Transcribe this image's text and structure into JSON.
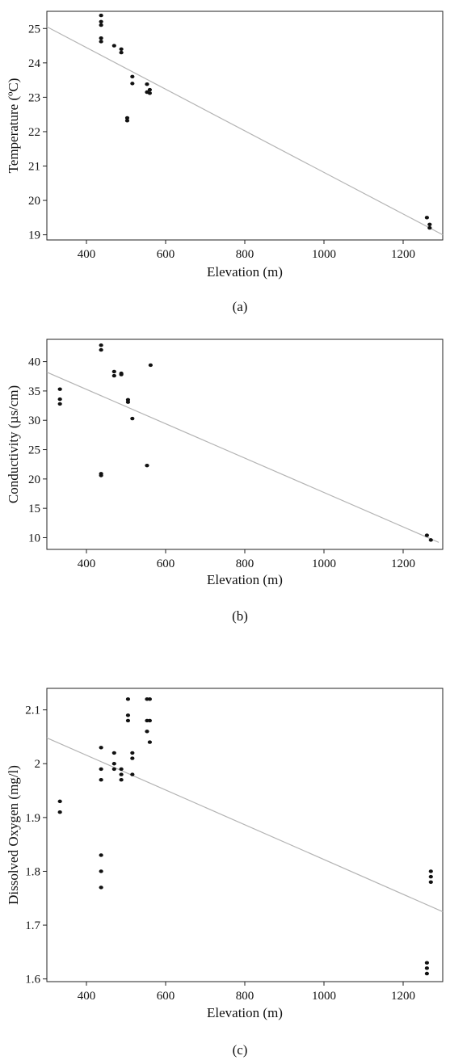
{
  "chart_data": [
    {
      "type": "scatter",
      "caption": "(a)",
      "xlabel": "Elevation (m)",
      "ylabel": "Temperature (ºC)",
      "xlim": [
        300,
        1300
      ],
      "ylim": [
        18.85,
        25.5
      ],
      "xticks": [
        400,
        600,
        800,
        1000,
        1200
      ],
      "yticks": [
        19,
        20,
        21,
        22,
        23,
        24,
        25
      ],
      "grid": false,
      "series": [
        {
          "points": [
            [
              437,
              25.38
            ],
            [
              437,
              25.2
            ],
            [
              437,
              25.1
            ],
            [
              437,
              24.72
            ],
            [
              437,
              24.62
            ],
            [
              470,
              24.5
            ],
            [
              488,
              24.4
            ],
            [
              488,
              24.3
            ],
            [
              503,
              22.4
            ],
            [
              503,
              22.32
            ],
            [
              516,
              23.6
            ],
            [
              516,
              23.4
            ],
            [
              553,
              23.38
            ],
            [
              553,
              23.15
            ],
            [
              560,
              23.22
            ],
            [
              560,
              23.12
            ],
            [
              1260,
              19.5
            ],
            [
              1267,
              19.3
            ],
            [
              1267,
              19.2
            ]
          ],
          "fit_line": [
            [
              300,
              25.05
            ],
            [
              1300,
              19.0
            ]
          ]
        }
      ]
    },
    {
      "type": "scatter",
      "caption": "(b)",
      "xlabel": "Elevation (m)",
      "ylabel": "Conductivity (µs/cm)",
      "xlim": [
        300,
        1300
      ],
      "ylim": [
        8.0,
        43.8
      ],
      "xticks": [
        400,
        600,
        800,
        1000,
        1200
      ],
      "yticks": [
        10,
        15,
        20,
        25,
        30,
        35,
        40
      ],
      "grid": false,
      "series": [
        {
          "points": [
            [
              333,
              35.3
            ],
            [
              333,
              33.6
            ],
            [
              333,
              32.8
            ],
            [
              437,
              42.8
            ],
            [
              437,
              42.0
            ],
            [
              437,
              20.9
            ],
            [
              437,
              20.6
            ],
            [
              470,
              38.3
            ],
            [
              470,
              37.6
            ],
            [
              488,
              38.0
            ],
            [
              488,
              37.8
            ],
            [
              505,
              33.5
            ],
            [
              505,
              33.1
            ],
            [
              516,
              30.3
            ],
            [
              553,
              22.3
            ],
            [
              562,
              39.4
            ],
            [
              1260,
              10.4
            ],
            [
              1270,
              9.6
            ]
          ],
          "fit_line": [
            [
              300,
              38.2
            ],
            [
              1290,
              9.2
            ]
          ]
        }
      ]
    },
    {
      "type": "scatter",
      "caption": "(c)",
      "xlabel": "Elevation (m)",
      "ylabel": "Dissolved Oxygen (mg/l)",
      "xlim": [
        300,
        1300
      ],
      "ylim": [
        1.595,
        2.14
      ],
      "xticks": [
        400,
        600,
        800,
        1000,
        1200
      ],
      "yticks": [
        1.6,
        1.7,
        1.8,
        1.9,
        2.0,
        2.1
      ],
      "grid": false,
      "series": [
        {
          "points": [
            [
              333,
              1.93
            ],
            [
              333,
              1.91
            ],
            [
              437,
              2.03
            ],
            [
              437,
              1.99
            ],
            [
              437,
              1.97
            ],
            [
              437,
              1.83
            ],
            [
              437,
              1.8
            ],
            [
              437,
              1.77
            ],
            [
              470,
              2.02
            ],
            [
              470,
              2.0
            ],
            [
              470,
              1.99
            ],
            [
              488,
              1.99
            ],
            [
              488,
              1.98
            ],
            [
              488,
              1.97
            ],
            [
              505,
              2.12
            ],
            [
              505,
              2.09
            ],
            [
              505,
              2.08
            ],
            [
              516,
              2.02
            ],
            [
              516,
              2.01
            ],
            [
              516,
              1.98
            ],
            [
              553,
              2.12
            ],
            [
              553,
              2.08
            ],
            [
              553,
              2.06
            ],
            [
              560,
              2.12
            ],
            [
              560,
              2.08
            ],
            [
              560,
              2.04
            ],
            [
              1260,
              1.63
            ],
            [
              1260,
              1.62
            ],
            [
              1260,
              1.61
            ],
            [
              1270,
              1.8
            ],
            [
              1270,
              1.79
            ],
            [
              1270,
              1.78
            ]
          ],
          "fit_line": [
            [
              300,
              2.048
            ],
            [
              1300,
              1.725
            ]
          ]
        }
      ]
    }
  ]
}
